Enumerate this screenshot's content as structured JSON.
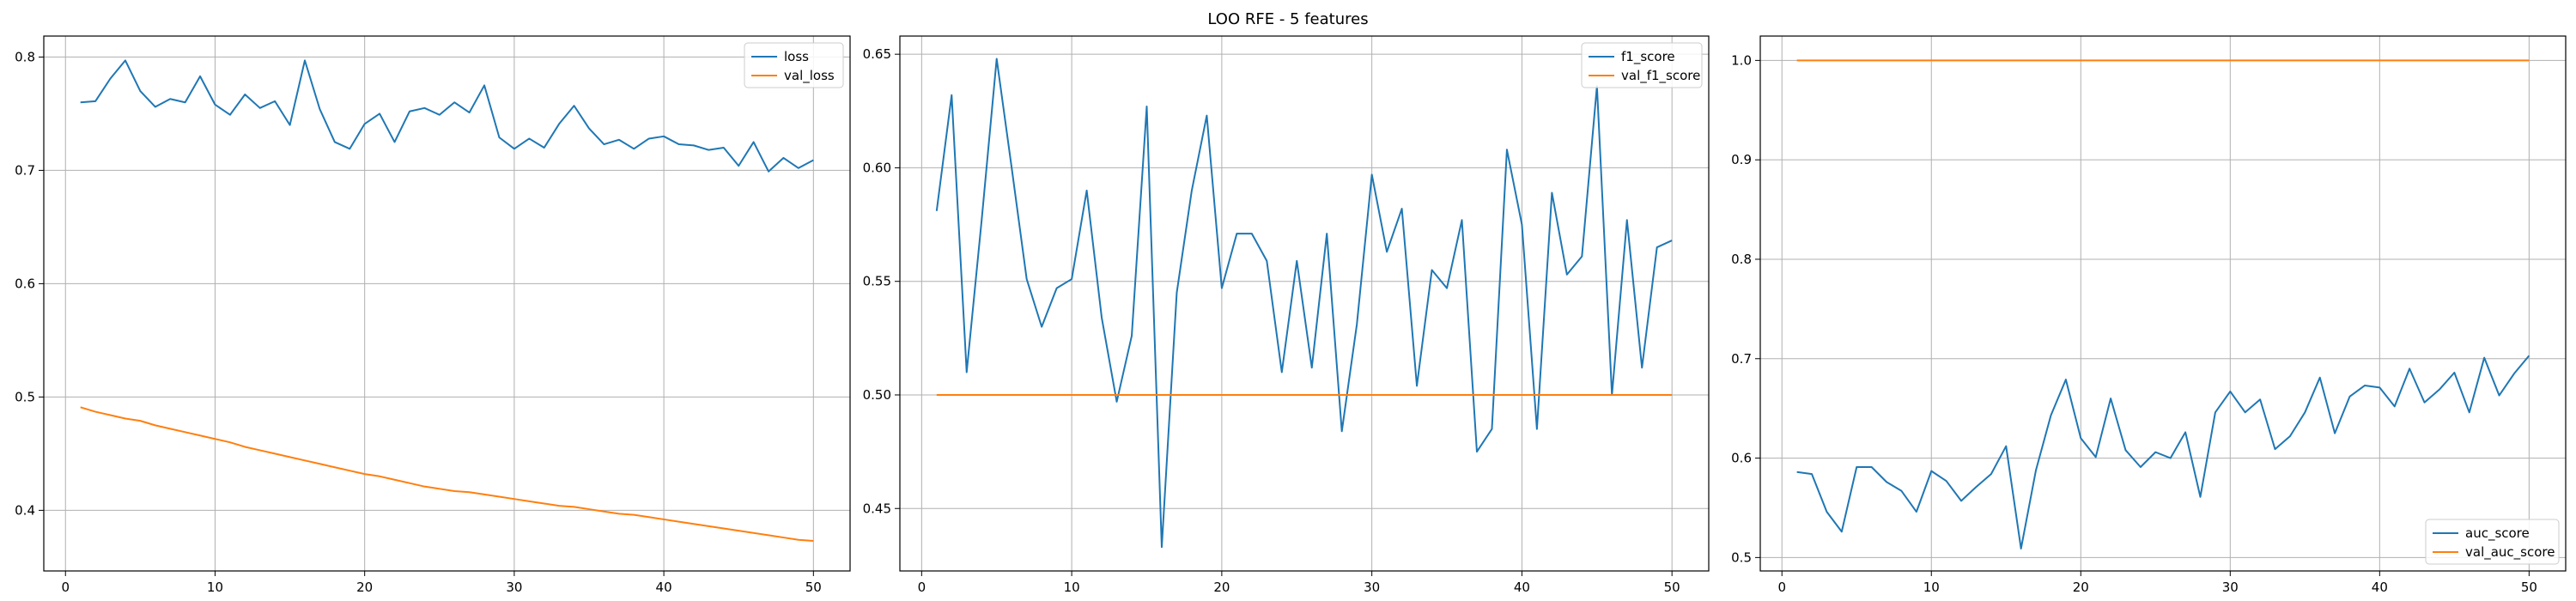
{
  "figure_title": "LOO RFE - 5 features",
  "colors": {
    "series1": "#1f77b4",
    "series2": "#ff7f0e",
    "grid": "#b0b0b0",
    "axes": "#000000",
    "legend_border": "#cccccc"
  },
  "chart_data": [
    {
      "type": "line",
      "title": "",
      "xlabel": "",
      "ylabel": "",
      "xlim": [
        -1.45,
        52.45
      ],
      "ylim": [
        0.3465,
        0.8185
      ],
      "xticks": [
        0,
        10,
        20,
        30,
        40,
        50
      ],
      "yticks": [
        0.4,
        0.5,
        0.6,
        0.7,
        0.8
      ],
      "grid": true,
      "legend_position": "upper right",
      "x": [
        1,
        2,
        3,
        4,
        5,
        6,
        7,
        8,
        9,
        10,
        11,
        12,
        13,
        14,
        15,
        16,
        17,
        18,
        19,
        20,
        21,
        22,
        23,
        24,
        25,
        26,
        27,
        28,
        29,
        30,
        31,
        32,
        33,
        34,
        35,
        36,
        37,
        38,
        39,
        40,
        41,
        42,
        43,
        44,
        45,
        46,
        47,
        48,
        49,
        50
      ],
      "series": [
        {
          "name": "loss",
          "values": [
            0.76,
            0.761,
            0.781,
            0.797,
            0.77,
            0.756,
            0.763,
            0.76,
            0.783,
            0.758,
            0.749,
            0.767,
            0.755,
            0.761,
            0.74,
            0.797,
            0.754,
            0.725,
            0.719,
            0.741,
            0.75,
            0.725,
            0.752,
            0.755,
            0.749,
            0.76,
            0.751,
            0.775,
            0.729,
            0.719,
            0.728,
            0.72,
            0.741,
            0.757,
            0.737,
            0.723,
            0.727,
            0.719,
            0.728,
            0.73,
            0.723,
            0.722,
            0.718,
            0.72,
            0.704,
            0.725,
            0.699,
            0.711,
            0.702,
            0.709
          ]
        },
        {
          "name": "val_loss",
          "values": [
            0.491,
            0.487,
            0.484,
            0.481,
            0.479,
            0.475,
            0.472,
            0.469,
            0.466,
            0.463,
            0.46,
            0.456,
            0.453,
            0.45,
            0.447,
            0.444,
            0.441,
            0.438,
            0.435,
            0.432,
            0.43,
            0.427,
            0.424,
            0.421,
            0.419,
            0.417,
            0.416,
            0.414,
            0.412,
            0.41,
            0.408,
            0.406,
            0.404,
            0.403,
            0.401,
            0.399,
            0.397,
            0.396,
            0.394,
            0.392,
            0.39,
            0.388,
            0.386,
            0.384,
            0.382,
            0.38,
            0.378,
            0.376,
            0.374,
            0.373
          ]
        }
      ]
    },
    {
      "type": "line",
      "title": "",
      "xlabel": "",
      "ylabel": "",
      "xlim": [
        -1.45,
        52.45
      ],
      "ylim": [
        0.4225,
        0.658
      ],
      "xticks": [
        0,
        10,
        20,
        30,
        40,
        50
      ],
      "yticks": [
        0.45,
        0.5,
        0.55,
        0.6,
        0.65
      ],
      "grid": true,
      "legend_position": "upper right",
      "x": [
        1,
        2,
        3,
        4,
        5,
        6,
        7,
        8,
        9,
        10,
        11,
        12,
        13,
        14,
        15,
        16,
        17,
        18,
        19,
        20,
        21,
        22,
        23,
        24,
        25,
        26,
        27,
        28,
        29,
        30,
        31,
        32,
        33,
        34,
        35,
        36,
        37,
        38,
        39,
        40,
        41,
        42,
        43,
        44,
        45,
        46,
        47,
        48,
        49,
        50
      ],
      "series": [
        {
          "name": "f1_score",
          "values": [
            0.581,
            0.632,
            0.51,
            0.577,
            0.648,
            0.6,
            0.551,
            0.53,
            0.547,
            0.551,
            0.59,
            0.534,
            0.497,
            0.526,
            0.627,
            0.433,
            0.545,
            0.59,
            0.623,
            0.547,
            0.571,
            0.571,
            0.559,
            0.51,
            0.559,
            0.512,
            0.571,
            0.484,
            0.531,
            0.597,
            0.563,
            0.582,
            0.504,
            0.555,
            0.547,
            0.577,
            0.475,
            0.485,
            0.608,
            0.575,
            0.485,
            0.589,
            0.553,
            0.561,
            0.636,
            0.5,
            0.577,
            0.512,
            0.565,
            0.568
          ]
        },
        {
          "name": "val_f1_score",
          "values": [
            0.5,
            0.5,
            0.5,
            0.5,
            0.5,
            0.5,
            0.5,
            0.5,
            0.5,
            0.5,
            0.5,
            0.5,
            0.5,
            0.5,
            0.5,
            0.5,
            0.5,
            0.5,
            0.5,
            0.5,
            0.5,
            0.5,
            0.5,
            0.5,
            0.5,
            0.5,
            0.5,
            0.5,
            0.5,
            0.5,
            0.5,
            0.5,
            0.5,
            0.5,
            0.5,
            0.5,
            0.5,
            0.5,
            0.5,
            0.5,
            0.5,
            0.5,
            0.5,
            0.5,
            0.5,
            0.5,
            0.5,
            0.5,
            0.5,
            0.5
          ]
        }
      ]
    },
    {
      "type": "line",
      "title": "",
      "xlabel": "",
      "ylabel": "",
      "xlim": [
        -1.45,
        52.45
      ],
      "ylim": [
        0.4865,
        1.0245
      ],
      "xticks": [
        0,
        10,
        20,
        30,
        40,
        50
      ],
      "yticks": [
        0.5,
        0.6,
        0.7,
        0.8,
        0.9,
        1.0
      ],
      "grid": true,
      "legend_position": "lower right",
      "x": [
        1,
        2,
        3,
        4,
        5,
        6,
        7,
        8,
        9,
        10,
        11,
        12,
        13,
        14,
        15,
        16,
        17,
        18,
        19,
        20,
        21,
        22,
        23,
        24,
        25,
        26,
        27,
        28,
        29,
        30,
        31,
        32,
        33,
        34,
        35,
        36,
        37,
        38,
        39,
        40,
        41,
        42,
        43,
        44,
        45,
        46,
        47,
        48,
        49,
        50
      ],
      "series": [
        {
          "name": "auc_score",
          "values": [
            0.586,
            0.584,
            0.546,
            0.526,
            0.591,
            0.591,
            0.576,
            0.567,
            0.546,
            0.587,
            0.577,
            0.557,
            0.571,
            0.584,
            0.612,
            0.509,
            0.588,
            0.643,
            0.679,
            0.62,
            0.601,
            0.66,
            0.608,
            0.591,
            0.606,
            0.6,
            0.626,
            0.561,
            0.646,
            0.667,
            0.646,
            0.659,
            0.609,
            0.622,
            0.646,
            0.681,
            0.625,
            0.662,
            0.673,
            0.671,
            0.652,
            0.69,
            0.656,
            0.669,
            0.686,
            0.646,
            0.701,
            0.663,
            0.685,
            0.703
          ]
        },
        {
          "name": "val_auc_score",
          "values": [
            1.0,
            1.0,
            1.0,
            1.0,
            1.0,
            1.0,
            1.0,
            1.0,
            1.0,
            1.0,
            1.0,
            1.0,
            1.0,
            1.0,
            1.0,
            1.0,
            1.0,
            1.0,
            1.0,
            1.0,
            1.0,
            1.0,
            1.0,
            1.0,
            1.0,
            1.0,
            1.0,
            1.0,
            1.0,
            1.0,
            1.0,
            1.0,
            1.0,
            1.0,
            1.0,
            1.0,
            1.0,
            1.0,
            1.0,
            1.0,
            1.0,
            1.0,
            1.0,
            1.0,
            1.0,
            1.0,
            1.0,
            1.0,
            1.0,
            1.0
          ]
        }
      ]
    }
  ]
}
